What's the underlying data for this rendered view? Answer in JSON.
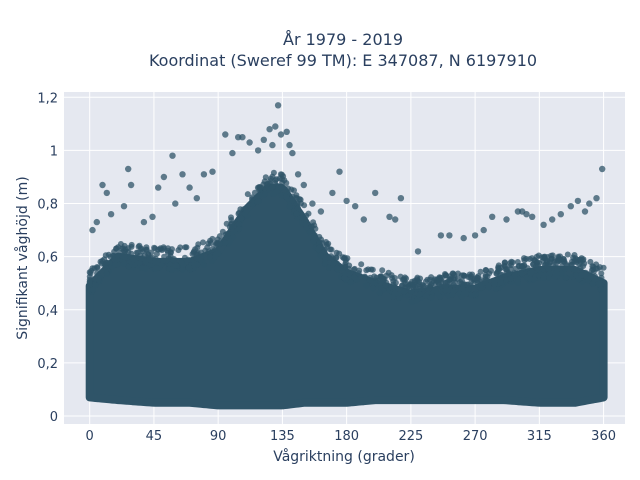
{
  "chart_data": {
    "type": "scatter",
    "title": "År 1979 - 2019",
    "subtitle": "Koordinat (Sweref 99 TM): E 347087, N 6197910",
    "xlabel": "Vågriktning (grader)",
    "ylabel": "Signifikant våghöjd (m)",
    "xlim": [
      -18,
      375
    ],
    "ylim": [
      -0.03,
      1.22
    ],
    "xticks": [
      0,
      45,
      90,
      135,
      180,
      225,
      270,
      315,
      360
    ],
    "xtick_labels": [
      "0",
      "45",
      "90",
      "135",
      "180",
      "225",
      "270",
      "315",
      "360"
    ],
    "yticks": [
      0,
      0.2,
      0.4,
      0.6,
      0.8,
      1,
      1.2
    ],
    "ytick_labels": [
      "0",
      "0,2",
      "0,4",
      "0,6",
      "0,8",
      "1",
      "1,2"
    ],
    "grid": true,
    "legend": "none",
    "colors": {
      "marker": "#2f5468",
      "plot_background": "#e5e8f0",
      "grid": "#ffffff",
      "text": "#2a3f5f"
    },
    "envelope": {
      "description_points_x": [
        0,
        20,
        45,
        70,
        90,
        110,
        125,
        135,
        150,
        165,
        180,
        200,
        225,
        250,
        270,
        290,
        315,
        340,
        360
      ],
      "dense_upper_y": [
        0.49,
        0.6,
        0.58,
        0.58,
        0.62,
        0.78,
        0.86,
        0.86,
        0.74,
        0.6,
        0.54,
        0.5,
        0.46,
        0.48,
        0.48,
        0.52,
        0.55,
        0.55,
        0.5
      ],
      "dense_lower_y": [
        0.07,
        0.06,
        0.05,
        0.05,
        0.04,
        0.04,
        0.04,
        0.04,
        0.05,
        0.05,
        0.05,
        0.06,
        0.06,
        0.06,
        0.06,
        0.06,
        0.05,
        0.05,
        0.07
      ]
    },
    "outliers": [
      {
        "x": 2,
        "y": 0.7
      },
      {
        "x": 5,
        "y": 0.73
      },
      {
        "x": 9,
        "y": 0.87
      },
      {
        "x": 12,
        "y": 0.84
      },
      {
        "x": 15,
        "y": 0.76
      },
      {
        "x": 24,
        "y": 0.79
      },
      {
        "x": 27,
        "y": 0.93
      },
      {
        "x": 29,
        "y": 0.87
      },
      {
        "x": 38,
        "y": 0.73
      },
      {
        "x": 44,
        "y": 0.75
      },
      {
        "x": 48,
        "y": 0.86
      },
      {
        "x": 52,
        "y": 0.9
      },
      {
        "x": 58,
        "y": 0.98
      },
      {
        "x": 60,
        "y": 0.8
      },
      {
        "x": 65,
        "y": 0.91
      },
      {
        "x": 70,
        "y": 0.86
      },
      {
        "x": 75,
        "y": 0.82
      },
      {
        "x": 80,
        "y": 0.91
      },
      {
        "x": 86,
        "y": 0.92
      },
      {
        "x": 95,
        "y": 1.06
      },
      {
        "x": 100,
        "y": 0.99
      },
      {
        "x": 104,
        "y": 1.05
      },
      {
        "x": 107,
        "y": 1.05
      },
      {
        "x": 112,
        "y": 1.03
      },
      {
        "x": 118,
        "y": 1.0
      },
      {
        "x": 122,
        "y": 1.04
      },
      {
        "x": 126,
        "y": 1.08
      },
      {
        "x": 128,
        "y": 1.02
      },
      {
        "x": 130,
        "y": 1.09
      },
      {
        "x": 132,
        "y": 1.17
      },
      {
        "x": 134,
        "y": 1.06
      },
      {
        "x": 138,
        "y": 1.07
      },
      {
        "x": 140,
        "y": 1.02
      },
      {
        "x": 142,
        "y": 0.99
      },
      {
        "x": 146,
        "y": 0.91
      },
      {
        "x": 150,
        "y": 0.87
      },
      {
        "x": 156,
        "y": 0.8
      },
      {
        "x": 162,
        "y": 0.77
      },
      {
        "x": 170,
        "y": 0.84
      },
      {
        "x": 175,
        "y": 0.92
      },
      {
        "x": 180,
        "y": 0.81
      },
      {
        "x": 186,
        "y": 0.79
      },
      {
        "x": 192,
        "y": 0.74
      },
      {
        "x": 200,
        "y": 0.84
      },
      {
        "x": 210,
        "y": 0.75
      },
      {
        "x": 214,
        "y": 0.74
      },
      {
        "x": 218,
        "y": 0.82
      },
      {
        "x": 230,
        "y": 0.62
      },
      {
        "x": 246,
        "y": 0.68
      },
      {
        "x": 252,
        "y": 0.68
      },
      {
        "x": 262,
        "y": 0.67
      },
      {
        "x": 270,
        "y": 0.68
      },
      {
        "x": 276,
        "y": 0.7
      },
      {
        "x": 282,
        "y": 0.75
      },
      {
        "x": 292,
        "y": 0.74
      },
      {
        "x": 300,
        "y": 0.77
      },
      {
        "x": 303,
        "y": 0.77
      },
      {
        "x": 306,
        "y": 0.76
      },
      {
        "x": 310,
        "y": 0.75
      },
      {
        "x": 318,
        "y": 0.72
      },
      {
        "x": 324,
        "y": 0.74
      },
      {
        "x": 330,
        "y": 0.76
      },
      {
        "x": 337,
        "y": 0.79
      },
      {
        "x": 342,
        "y": 0.81
      },
      {
        "x": 347,
        "y": 0.77
      },
      {
        "x": 350,
        "y": 0.8
      },
      {
        "x": 355,
        "y": 0.82
      },
      {
        "x": 359,
        "y": 0.93
      }
    ]
  }
}
